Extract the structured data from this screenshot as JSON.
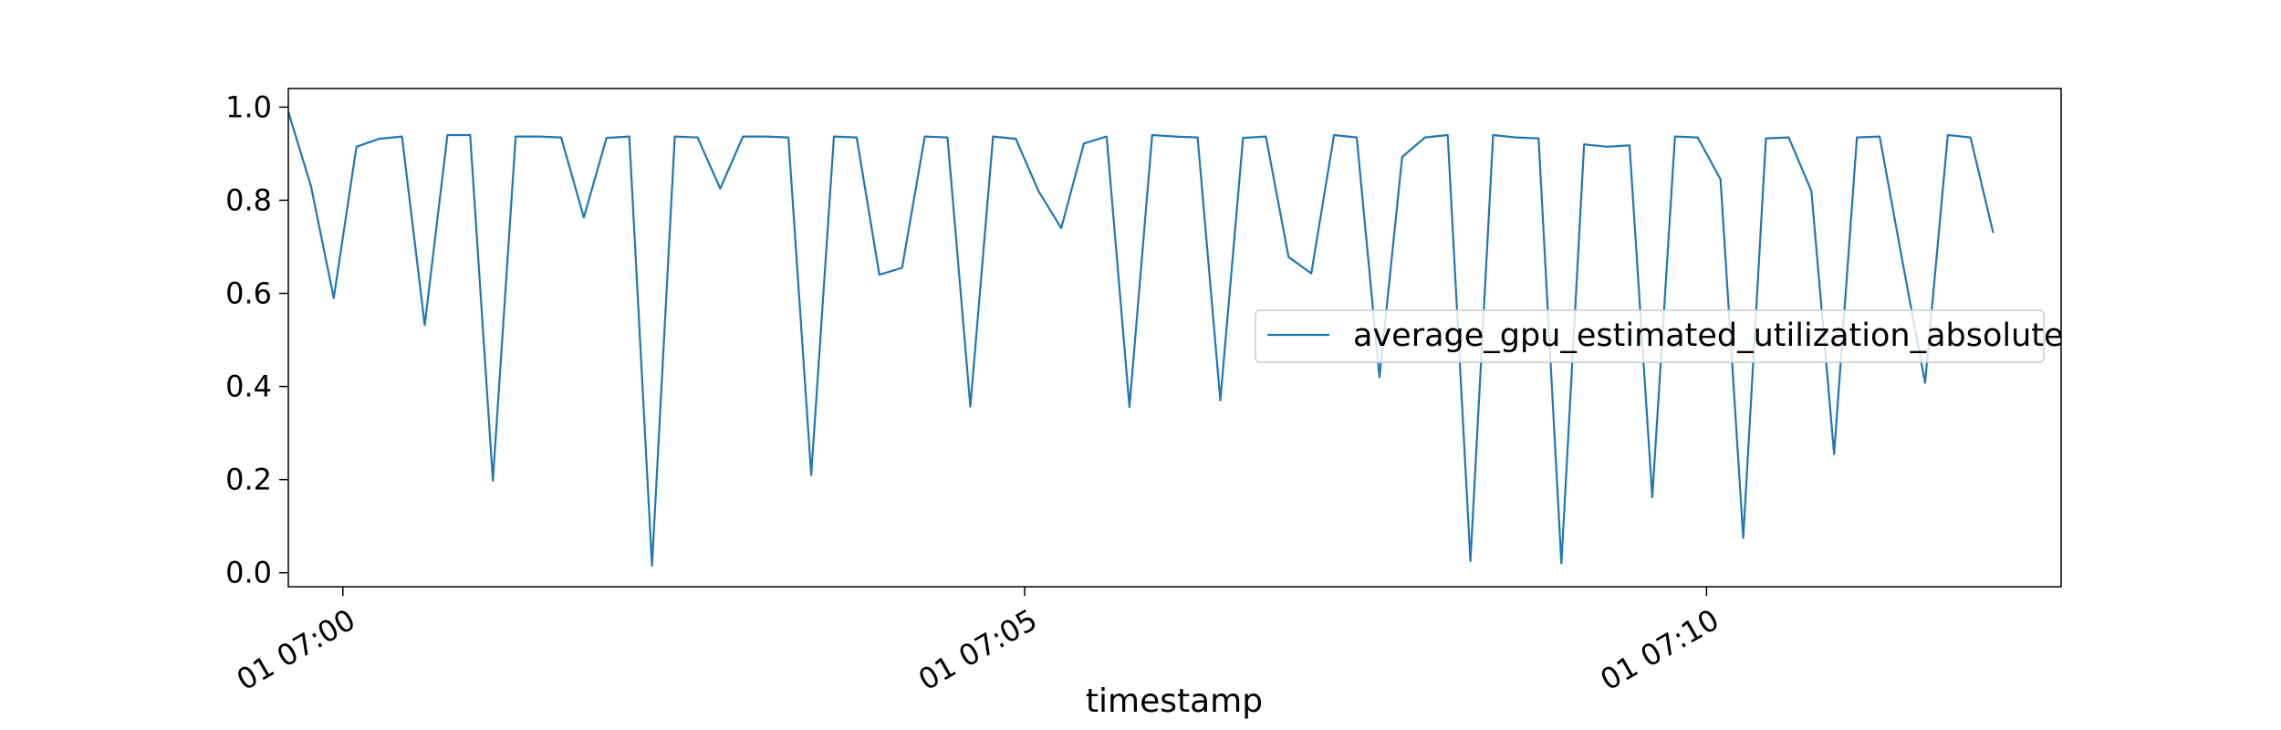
{
  "chart_data": {
    "type": "line",
    "title": "",
    "xlabel": "timestamp",
    "ylabel": "",
    "x_unit": "minute",
    "x_start": "07:00",
    "x_start_offset": -0.4,
    "x_step_minutes": 0.1667,
    "xlim": [
      "06:59:36",
      "07:12:36"
    ],
    "ylim": [
      -0.03,
      1.04
    ],
    "x_ticks": [
      {
        "at": 0,
        "label": "01 07:00"
      },
      {
        "at": 5,
        "label": "01 07:05"
      },
      {
        "at": 10,
        "label": "01 07:10"
      }
    ],
    "y_ticks": [
      {
        "value": 0.0,
        "label": "0.0"
      },
      {
        "value": 0.2,
        "label": "0.2"
      },
      {
        "value": 0.4,
        "label": "0.4"
      },
      {
        "value": 0.6,
        "label": "0.6"
      },
      {
        "value": 0.8,
        "label": "0.8"
      },
      {
        "value": 1.0,
        "label": "1.0"
      }
    ],
    "grid": false,
    "legend_position": "center-right",
    "series": [
      {
        "name": "average_gpu_estimated_utilization_absolute",
        "color": "#1f77b4",
        "values": [
          0.99,
          0.83,
          0.59,
          0.915,
          0.932,
          0.937,
          0.532,
          0.94,
          0.94,
          0.198,
          0.937,
          0.937,
          0.935,
          0.763,
          0.934,
          0.937,
          0.015,
          0.937,
          0.935,
          0.825,
          0.937,
          0.937,
          0.935,
          0.21,
          0.937,
          0.935,
          0.64,
          0.655,
          0.937,
          0.935,
          0.357,
          0.937,
          0.932,
          0.82,
          0.74,
          0.922,
          0.937,
          0.356,
          0.94,
          0.937,
          0.935,
          0.37,
          0.934,
          0.937,
          0.678,
          0.643,
          0.94,
          0.935,
          0.42,
          0.893,
          0.935,
          0.94,
          0.025,
          0.94,
          0.935,
          0.933,
          0.02,
          0.92,
          0.915,
          0.918,
          0.162,
          0.937,
          0.935,
          0.845,
          0.075,
          0.933,
          0.935,
          0.82,
          0.255,
          0.935,
          0.937,
          0.67,
          0.408,
          0.94,
          0.935,
          0.73
        ]
      }
    ]
  }
}
